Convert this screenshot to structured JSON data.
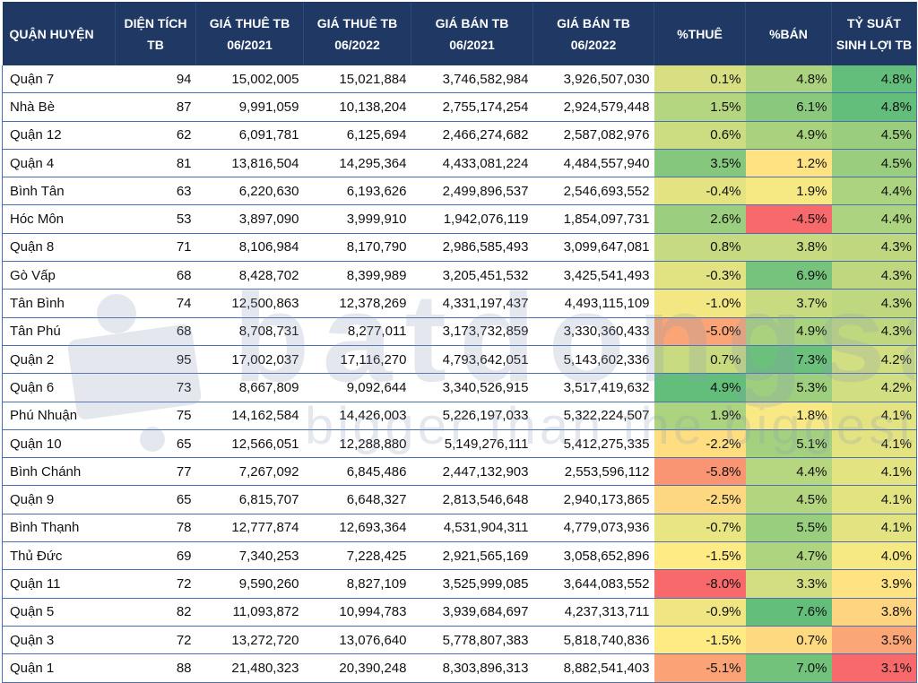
{
  "headers": [
    "QUẬN HUYỆN",
    "DIỆN TÍCH TB",
    "GIÁ THUÊ TB 06/2021",
    "GIÁ THUÊ TB 06/2022",
    "GIÁ BÁN TB 06/2021",
    "GIÁ BÁN TB 06/2022",
    "%THUÊ",
    "%BÁN",
    "TỶ SUẤT SINH LỢI TB"
  ],
  "rows": [
    {
      "district": "Quận 7",
      "area": "94",
      "rent_2021": "15,002,005",
      "rent_2022": "15,021,884",
      "sale_2021": "3,746,582,984",
      "sale_2022": "3,926,507,030",
      "rent_pct": "0.1%",
      "sale_pct": "4.8%",
      "yield": "4.8%"
    },
    {
      "district": "Nhà Bè",
      "area": "87",
      "rent_2021": "9,991,059",
      "rent_2022": "10,138,204",
      "sale_2021": "2,755,174,254",
      "sale_2022": "2,924,579,448",
      "rent_pct": "1.5%",
      "sale_pct": "6.1%",
      "yield": "4.8%"
    },
    {
      "district": "Quận 12",
      "area": "62",
      "rent_2021": "6,091,781",
      "rent_2022": "6,125,694",
      "sale_2021": "2,466,274,682",
      "sale_2022": "2,587,082,976",
      "rent_pct": "0.6%",
      "sale_pct": "4.9%",
      "yield": "4.5%"
    },
    {
      "district": "Quận 4",
      "area": "81",
      "rent_2021": "13,816,504",
      "rent_2022": "14,295,364",
      "sale_2021": "4,433,081,224",
      "sale_2022": "4,484,557,940",
      "rent_pct": "3.5%",
      "sale_pct": "1.2%",
      "yield": "4.5%"
    },
    {
      "district": "Bình Tân",
      "area": "63",
      "rent_2021": "6,220,630",
      "rent_2022": "6,193,626",
      "sale_2021": "2,499,896,537",
      "sale_2022": "2,546,693,552",
      "rent_pct": "-0.4%",
      "sale_pct": "1.9%",
      "yield": "4.4%"
    },
    {
      "district": "Hóc Môn",
      "area": "53",
      "rent_2021": "3,897,090",
      "rent_2022": "3,999,910",
      "sale_2021": "1,942,076,119",
      "sale_2022": "1,854,097,731",
      "rent_pct": "2.6%",
      "sale_pct": "-4.5%",
      "yield": "4.4%"
    },
    {
      "district": "Quận 8",
      "area": "71",
      "rent_2021": "8,106,984",
      "rent_2022": "8,170,790",
      "sale_2021": "2,986,585,493",
      "sale_2022": "3,099,647,081",
      "rent_pct": "0.8%",
      "sale_pct": "3.8%",
      "yield": "4.3%"
    },
    {
      "district": "Gò Vấp",
      "area": "68",
      "rent_2021": "8,428,702",
      "rent_2022": "8,399,989",
      "sale_2021": "3,205,451,532",
      "sale_2022": "3,425,541,493",
      "rent_pct": "-0.3%",
      "sale_pct": "6.9%",
      "yield": "4.3%"
    },
    {
      "district": "Tân Bình",
      "area": "74",
      "rent_2021": "12,500,863",
      "rent_2022": "12,378,269",
      "sale_2021": "4,331,197,437",
      "sale_2022": "4,493,115,109",
      "rent_pct": "-1.0%",
      "sale_pct": "3.7%",
      "yield": "4.3%"
    },
    {
      "district": "Tân Phú",
      "area": "68",
      "rent_2021": "8,708,731",
      "rent_2022": "8,277,011",
      "sale_2021": "3,173,732,859",
      "sale_2022": "3,330,360,433",
      "rent_pct": "-5.0%",
      "sale_pct": "4.9%",
      "yield": "4.3%"
    },
    {
      "district": "Quận 2",
      "area": "95",
      "rent_2021": "17,002,037",
      "rent_2022": "17,116,270",
      "sale_2021": "4,793,642,051",
      "sale_2022": "5,143,602,336",
      "rent_pct": "0.7%",
      "sale_pct": "7.3%",
      "yield": "4.2%"
    },
    {
      "district": "Quận 6",
      "area": "73",
      "rent_2021": "8,667,809",
      "rent_2022": "9,092,644",
      "sale_2021": "3,340,526,915",
      "sale_2022": "3,517,419,632",
      "rent_pct": "4.9%",
      "sale_pct": "5.3%",
      "yield": "4.2%"
    },
    {
      "district": "Phú Nhuận",
      "area": "75",
      "rent_2021": "14,162,584",
      "rent_2022": "14,426,003",
      "sale_2021": "5,226,197,033",
      "sale_2022": "5,322,224,507",
      "rent_pct": "1.9%",
      "sale_pct": "1.8%",
      "yield": "4.1%"
    },
    {
      "district": "Quận 10",
      "area": "65",
      "rent_2021": "12,566,051",
      "rent_2022": "12,288,880",
      "sale_2021": "5,149,276,111",
      "sale_2022": "5,412,275,335",
      "rent_pct": "-2.2%",
      "sale_pct": "5.1%",
      "yield": "4.1%"
    },
    {
      "district": "Bình Chánh",
      "area": "77",
      "rent_2021": "7,267,092",
      "rent_2022": "6,845,486",
      "sale_2021": "2,447,132,903",
      "sale_2022": "2,553,596,112",
      "rent_pct": "-5.8%",
      "sale_pct": "4.4%",
      "yield": "4.1%"
    },
    {
      "district": "Quận 9",
      "area": "65",
      "rent_2021": "6,815,707",
      "rent_2022": "6,648,327",
      "sale_2021": "2,813,546,648",
      "sale_2022": "2,940,173,865",
      "rent_pct": "-2.5%",
      "sale_pct": "4.5%",
      "yield": "4.1%"
    },
    {
      "district": "Bình Thạnh",
      "area": "78",
      "rent_2021": "12,777,874",
      "rent_2022": "12,693,364",
      "sale_2021": "4,531,904,311",
      "sale_2022": "4,779,073,936",
      "rent_pct": "-0.7%",
      "sale_pct": "5.5%",
      "yield": "4.1%"
    },
    {
      "district": "Thủ Đức",
      "area": "69",
      "rent_2021": "7,340,253",
      "rent_2022": "7,228,425",
      "sale_2021": "2,921,565,169",
      "sale_2022": "3,058,652,896",
      "rent_pct": "-1.5%",
      "sale_pct": "4.7%",
      "yield": "4.0%"
    },
    {
      "district": "Quận 11",
      "area": "72",
      "rent_2021": "9,590,260",
      "rent_2022": "8,827,109",
      "sale_2021": "3,525,999,085",
      "sale_2022": "3,644,083,552",
      "rent_pct": "-8.0%",
      "sale_pct": "3.3%",
      "yield": "3.9%"
    },
    {
      "district": "Quận 5",
      "area": "82",
      "rent_2021": "11,093,872",
      "rent_2022": "10,994,783",
      "sale_2021": "3,939,684,697",
      "sale_2022": "4,237,313,711",
      "rent_pct": "-0.9%",
      "sale_pct": "7.6%",
      "yield": "3.8%"
    },
    {
      "district": "Quận 3",
      "area": "72",
      "rent_2021": "13,272,720",
      "rent_2022": "13,076,640",
      "sale_2021": "5,778,807,383",
      "sale_2022": "5,818,740,836",
      "rent_pct": "-1.5%",
      "sale_pct": "0.7%",
      "yield": "3.5%"
    },
    {
      "district": "Quận 1",
      "area": "88",
      "rent_2021": "21,480,323",
      "rent_2022": "20,390,248",
      "sale_2021": "8,303,896,313",
      "sale_2022": "8,882,541,403",
      "rent_pct": "-5.1%",
      "sale_pct": "7.0%",
      "yield": "3.1%"
    }
  ],
  "colors": {
    "header_bg": "#1f3864",
    "header_text": "#ffffff",
    "row_border": "#4a6fb5",
    "scale_low": "#f8696b",
    "scale_mid": "#ffeb84",
    "scale_high": "#63be7b"
  },
  "watermark": {
    "brand": "batdongsan",
    "tagline": "bigger than the biggest"
  }
}
